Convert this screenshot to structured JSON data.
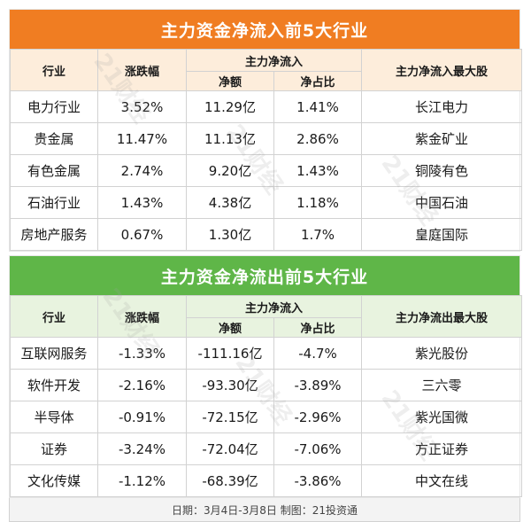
{
  "inflow": {
    "title": "主力资金净流入前5大行业",
    "headers": {
      "industry": "行业",
      "change": "涨跌幅",
      "main_flow": "主力净流入",
      "net_amount": "净额",
      "net_ratio": "净占比",
      "top_stock": "主力净流入最大股"
    },
    "rows": [
      {
        "industry": "电力行业",
        "change": "3.52%",
        "net": "11.29亿",
        "ratio": "1.41%",
        "stock": "长江电力"
      },
      {
        "industry": "贵金属",
        "change": "11.47%",
        "net": "11.13亿",
        "ratio": "2.86%",
        "stock": "紫金矿业"
      },
      {
        "industry": "有色金属",
        "change": "2.74%",
        "net": "9.20亿",
        "ratio": "1.43%",
        "stock": "铜陵有色"
      },
      {
        "industry": "石油行业",
        "change": "1.43%",
        "net": "4.38亿",
        "ratio": "1.18%",
        "stock": "中国石油"
      },
      {
        "industry": "房地产服务",
        "change": "0.67%",
        "net": "1.30亿",
        "ratio": "1.7%",
        "stock": "皇庭国际"
      }
    ]
  },
  "outflow": {
    "title": "主力资金净流出前5大行业",
    "headers": {
      "industry": "行业",
      "change": "涨跌幅",
      "main_flow": "主力净流入",
      "net_amount": "净额",
      "net_ratio": "净占比",
      "top_stock": "主力净流出最大股"
    },
    "rows": [
      {
        "industry": "互联网服务",
        "change": "-1.33%",
        "net": "-111.16亿",
        "ratio": "-4.7%",
        "stock": "紫光股份"
      },
      {
        "industry": "软件开发",
        "change": "-2.16%",
        "net": "-93.30亿",
        "ratio": "-3.89%",
        "stock": "三六零"
      },
      {
        "industry": "半导体",
        "change": "-0.91%",
        "net": "-72.15亿",
        "ratio": "-2.96%",
        "stock": "紫光国微"
      },
      {
        "industry": "证券",
        "change": "-3.24%",
        "net": "-72.04亿",
        "ratio": "-7.06%",
        "stock": "方正证券"
      },
      {
        "industry": "文化传媒",
        "change": "-1.12%",
        "net": "-68.39亿",
        "ratio": "-3.86%",
        "stock": "中文在线"
      }
    ]
  },
  "footer": "日期：3月4日-3月8日  制图：21投资通",
  "watermark": "21财经",
  "colors": {
    "inflow_accent": "#f07d22",
    "outflow_accent": "#5fb648"
  }
}
